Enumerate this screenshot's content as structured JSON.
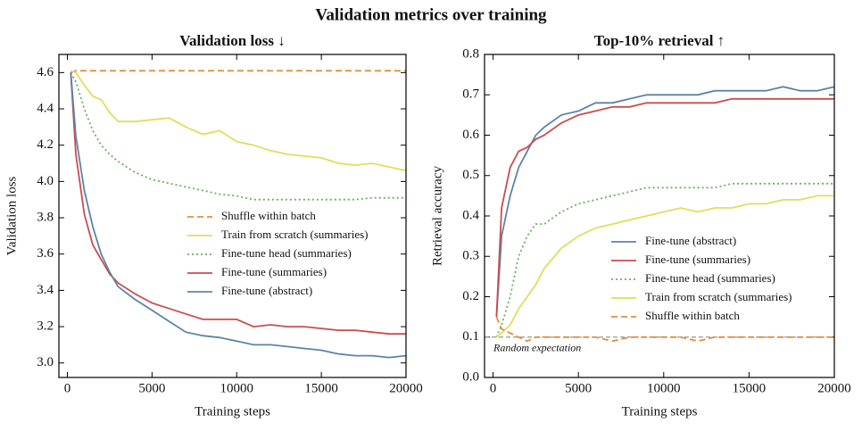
{
  "title": "Validation metrics over training",
  "chart_data": [
    {
      "type": "line",
      "title": "Validation loss ↓",
      "xlabel": "Training steps",
      "ylabel": "Validation loss",
      "x": [
        200,
        500,
        1000,
        1500,
        2000,
        2500,
        3000,
        4000,
        5000,
        6000,
        7000,
        8000,
        9000,
        10000,
        11000,
        12000,
        13000,
        14000,
        15000,
        16000,
        17000,
        18000,
        19000,
        20000
      ],
      "xlim": [
        -500,
        20000
      ],
      "xticks": [
        0,
        5000,
        10000,
        15000,
        20000
      ],
      "ylim": [
        2.92,
        4.7
      ],
      "yticks": [
        {
          "value": 3,
          "label": "3.0"
        },
        3.2,
        3.4,
        3.6,
        3.8,
        {
          "value": 4,
          "label": "4.0"
        },
        4.2,
        4.4,
        4.6
      ],
      "legend": "center right",
      "series": [
        {
          "name": "Shuffle within batch",
          "color": "#e08f3f",
          "dash": "dashed",
          "values": [
            4.6,
            4.61,
            4.61,
            4.61,
            4.61,
            4.61,
            4.61,
            4.61,
            4.61,
            4.61,
            4.61,
            4.61,
            4.61,
            4.61,
            4.61,
            4.61,
            4.61,
            4.61,
            4.61,
            4.61,
            4.61,
            4.61,
            4.61,
            4.61
          ]
        },
        {
          "name": "Train from scratch (summaries)",
          "color": "#e3dc5e",
          "dash": "solid",
          "values": [
            4.61,
            4.6,
            4.53,
            4.47,
            4.45,
            4.38,
            4.33,
            4.33,
            4.34,
            4.35,
            4.3,
            4.26,
            4.28,
            4.22,
            4.2,
            4.17,
            4.15,
            4.14,
            4.13,
            4.1,
            4.09,
            4.1,
            4.08,
            4.06
          ]
        },
        {
          "name": "Fine-tune head (summaries)",
          "color": "#6aaf5f",
          "dash": "dotted",
          "values": [
            4.6,
            4.55,
            4.4,
            4.28,
            4.2,
            4.15,
            4.11,
            4.05,
            4.01,
            3.99,
            3.97,
            3.95,
            3.93,
            3.92,
            3.9,
            3.9,
            3.9,
            3.9,
            3.9,
            3.9,
            3.9,
            3.91,
            3.91,
            3.91
          ]
        },
        {
          "name": "Fine-tune (summaries)",
          "color": "#cc4c4e",
          "dash": "solid",
          "values": [
            4.6,
            4.15,
            3.82,
            3.65,
            3.57,
            3.49,
            3.44,
            3.38,
            3.33,
            3.3,
            3.27,
            3.24,
            3.24,
            3.24,
            3.2,
            3.21,
            3.2,
            3.2,
            3.19,
            3.18,
            3.18,
            3.17,
            3.16,
            3.16
          ]
        },
        {
          "name": "Fine-tune (abstract)",
          "color": "#5b84a8",
          "dash": "solid",
          "values": [
            4.6,
            4.25,
            3.95,
            3.75,
            3.6,
            3.5,
            3.42,
            3.35,
            3.29,
            3.23,
            3.17,
            3.15,
            3.14,
            3.12,
            3.1,
            3.1,
            3.09,
            3.08,
            3.07,
            3.05,
            3.04,
            3.04,
            3.03,
            3.04
          ]
        }
      ]
    },
    {
      "type": "line",
      "title": "Top-10% retrieval ↑",
      "xlabel": "Training steps",
      "ylabel": "Retrieval accuracy",
      "x": [
        200,
        500,
        1000,
        1500,
        2000,
        2500,
        3000,
        4000,
        5000,
        6000,
        7000,
        8000,
        9000,
        10000,
        11000,
        12000,
        13000,
        14000,
        15000,
        16000,
        17000,
        18000,
        19000,
        20000
      ],
      "xlim": [
        -500,
        20000
      ],
      "xticks": [
        0,
        5000,
        10000,
        15000,
        20000
      ],
      "ylim": [
        0,
        0.8
      ],
      "yticks": [
        {
          "value": 0,
          "label": "0.0"
        },
        0.1,
        0.2,
        0.3,
        0.4,
        0.5,
        0.6,
        0.7,
        0.8
      ],
      "legend": "lower right",
      "hlines": [
        {
          "value": 0.1,
          "label": "Random expectation",
          "color": "#999999"
        }
      ],
      "series": [
        {
          "name": "Fine-tune (abstract)",
          "color": "#5b84a8",
          "dash": "solid",
          "values": [
            0.15,
            0.35,
            0.45,
            0.52,
            0.56,
            0.6,
            0.62,
            0.65,
            0.66,
            0.68,
            0.68,
            0.69,
            0.7,
            0.7,
            0.7,
            0.7,
            0.71,
            0.71,
            0.71,
            0.71,
            0.72,
            0.71,
            0.71,
            0.72
          ]
        },
        {
          "name": "Fine-tune (summaries)",
          "color": "#cc4c4e",
          "dash": "solid",
          "values": [
            0.15,
            0.42,
            0.52,
            0.56,
            0.57,
            0.59,
            0.6,
            0.63,
            0.65,
            0.66,
            0.67,
            0.67,
            0.68,
            0.68,
            0.68,
            0.68,
            0.68,
            0.69,
            0.69,
            0.69,
            0.69,
            0.69,
            0.69,
            0.69
          ]
        },
        {
          "name": "Fine-tune head (summaries)",
          "color": "#6aaf5f",
          "dash": "dotted",
          "values": [
            0.1,
            0.13,
            0.2,
            0.3,
            0.35,
            0.38,
            0.38,
            0.41,
            0.43,
            0.44,
            0.45,
            0.46,
            0.47,
            0.47,
            0.47,
            0.47,
            0.47,
            0.48,
            0.48,
            0.48,
            0.48,
            0.48,
            0.48,
            0.48
          ]
        },
        {
          "name": "Train from scratch (summaries)",
          "color": "#e3dc5e",
          "dash": "solid",
          "values": [
            0.1,
            0.11,
            0.13,
            0.17,
            0.2,
            0.23,
            0.27,
            0.32,
            0.35,
            0.37,
            0.38,
            0.39,
            0.4,
            0.41,
            0.42,
            0.41,
            0.42,
            0.42,
            0.43,
            0.43,
            0.44,
            0.44,
            0.45,
            0.45
          ]
        },
        {
          "name": "Shuffle within batch",
          "color": "#e08f3f",
          "dash": "dashed",
          "values": [
            0.15,
            0.12,
            0.11,
            0.1,
            0.09,
            0.1,
            0.1,
            0.1,
            0.1,
            0.1,
            0.09,
            0.1,
            0.1,
            0.1,
            0.1,
            0.09,
            0.1,
            0.1,
            0.1,
            0.1,
            0.1,
            0.1,
            0.1,
            0.1
          ]
        }
      ]
    }
  ]
}
